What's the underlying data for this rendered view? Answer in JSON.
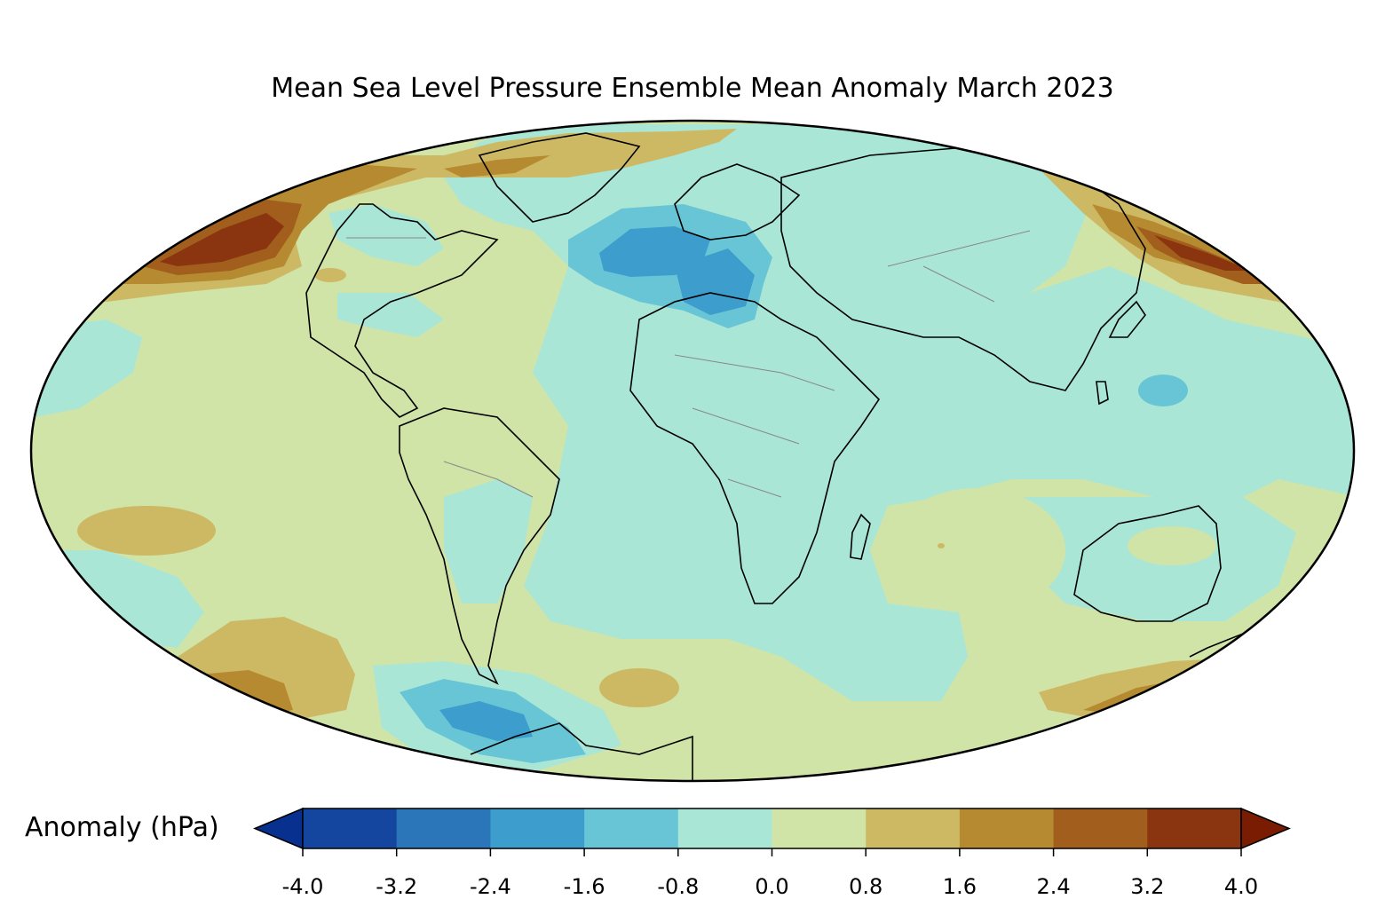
{
  "title": "Mean Sea Level Pressure Ensemble Mean Anomaly March 2023",
  "projection": "Mollweide",
  "colorbar": {
    "label": "Anomaly (hPa)",
    "extend": "both",
    "ticks": [
      "-4.0",
      "-3.2",
      "-2.4",
      "-1.6",
      "-0.8",
      "0.0",
      "0.8",
      "1.6",
      "2.4",
      "3.2",
      "4.0"
    ],
    "under_color": "#08308f",
    "over_color": "#7a1c02",
    "colors": [
      "#1446a0",
      "#2b76b8",
      "#3d9dcc",
      "#68c5d6",
      "#aae6d6",
      "#d0e4a8",
      "#cdb964",
      "#b58a30",
      "#a15e1c",
      "#8a3410"
    ]
  },
  "regions": [
    {
      "name": "North Atlantic low (west of Europe)",
      "min_anomaly": "-2.4"
    },
    {
      "name": "Southern Ocean low (Drake Passage / Antarctic Peninsula)",
      "min_anomaly": "-2.4"
    },
    {
      "name": "Alaska / Bering Strait high",
      "max_anomaly": "4.0"
    },
    {
      "name": "Greenland high",
      "max_anomaly": "1.6"
    }
  ]
}
